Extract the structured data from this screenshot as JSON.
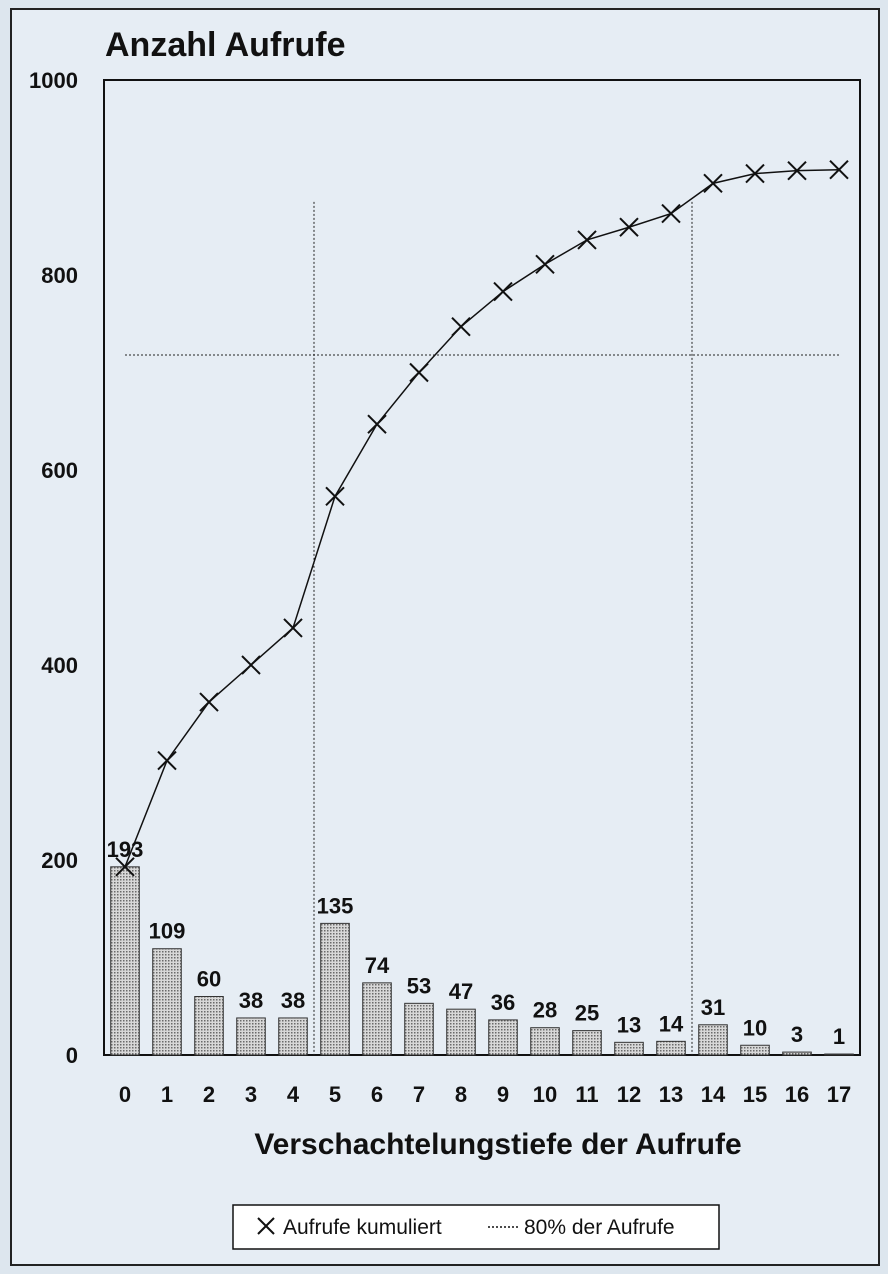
{
  "chart_data": {
    "type": "bar",
    "title": "Anzahl Aufrufe",
    "xlabel": "Verschachtelungstiefe der Aufrufe",
    "ylabel": "",
    "ylim": [
      0,
      1000
    ],
    "yticks": [
      0,
      200,
      400,
      600,
      800,
      1000
    ],
    "categories": [
      "0",
      "1",
      "2",
      "3",
      "4",
      "5",
      "6",
      "7",
      "8",
      "9",
      "10",
      "11",
      "12",
      "13",
      "14",
      "15",
      "16",
      "17"
    ],
    "values": [
      193,
      109,
      60,
      38,
      38,
      135,
      74,
      53,
      47,
      36,
      28,
      25,
      13,
      14,
      31,
      10,
      3,
      1
    ],
    "value_labels": [
      "193",
      "109",
      "60",
      "38",
      "38",
      "135",
      "74",
      "53",
      "47",
      "36",
      "28",
      "25",
      "13",
      "14",
      "31",
      "10",
      "3",
      "1"
    ],
    "series": [
      {
        "name": "Aufrufe kumuliert",
        "type": "line",
        "values": [
          193,
          302,
          362,
          400,
          438,
          573,
          647,
          700,
          747,
          783,
          811,
          836,
          849,
          863,
          894,
          904,
          907,
          908
        ]
      }
    ],
    "reference_line": {
      "name": "80% der Aufrufe",
      "value": 718
    },
    "vertical_markers": [
      4.5,
      13.5
    ],
    "legend": {
      "position": "bottom-center",
      "entries": [
        "Aufrufe kumuliert",
        "80% der Aufrufe"
      ]
    },
    "grid": false
  }
}
